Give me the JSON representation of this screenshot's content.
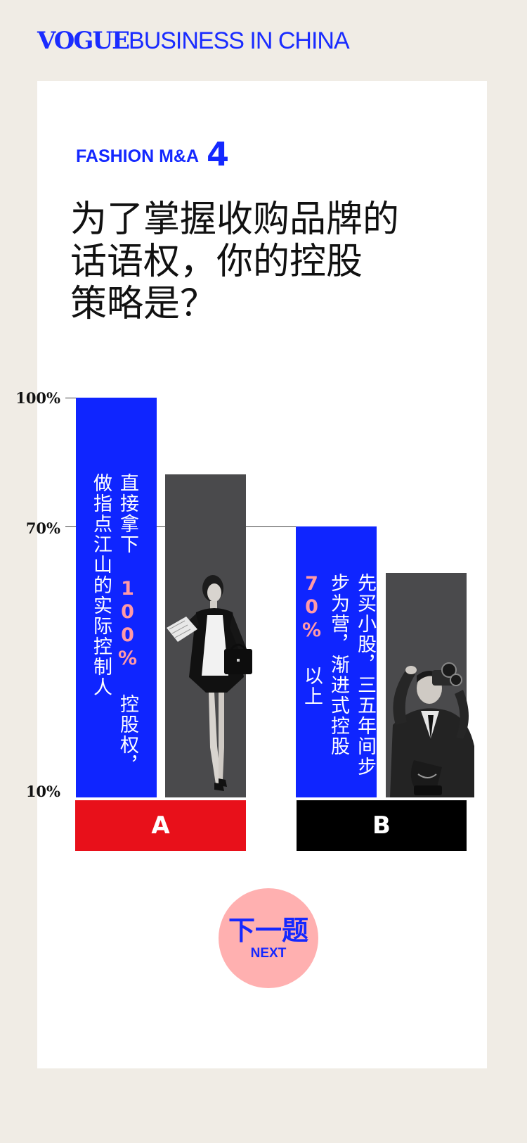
{
  "header": {
    "logo_vogue": "VOGUE",
    "logo_rest": "BUSINESS IN CHINA"
  },
  "section": {
    "label": "FASHION M&A",
    "number": "4"
  },
  "question": {
    "lines": [
      "为了掌握收购品牌的",
      "话语权，你的控股",
      "策略是？"
    ]
  },
  "chart_data": {
    "type": "bar",
    "y_ticks": [
      "100%",
      "70%",
      "10%"
    ],
    "categories": [
      "A",
      "B"
    ],
    "values": [
      100,
      70
    ],
    "colors": {
      "bar": "#0f25ff",
      "option_a": "#e8101a",
      "option_b": "#000000",
      "photo_bg": "#4a4a4c",
      "highlight": "#ff9aa6"
    },
    "options": [
      {
        "letter": "A",
        "col1_pre": "直接拿下 ",
        "col1_pct": "100%",
        "col1_post": " 控股权，",
        "col2": "做指点江山的实际控制人"
      },
      {
        "letter": "B",
        "col1": "先买小股，三五年间",
        "col2": "步步为营，渐进式",
        "col3_pre": "控股 ",
        "col3_pct": "70%",
        "col3_post": " 以上"
      }
    ]
  },
  "next": {
    "cn": "下一题",
    "en": "NEXT"
  }
}
